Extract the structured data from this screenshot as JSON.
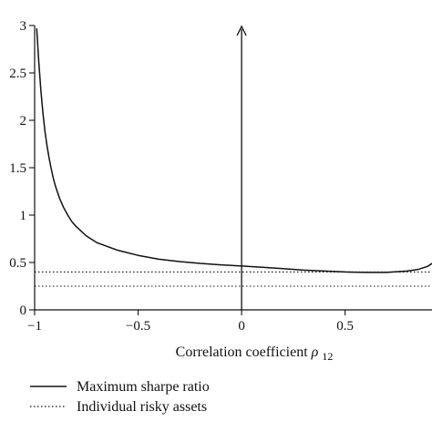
{
  "chart_data": {
    "type": "line",
    "title": "",
    "xlabel": "Correlation coefficient",
    "xlabel_symbol": "ρ",
    "xlabel_subscript": "12",
    "ylabel": "",
    "xlim": [
      -1,
      0.92
    ],
    "ylim": [
      0,
      3
    ],
    "xticks": [
      -1,
      -0.5,
      0,
      0.5
    ],
    "xtick_labels": [
      "−1",
      "−0.5",
      "0",
      "0.5"
    ],
    "yticks": [
      0,
      0.5,
      1,
      1.5,
      2,
      2.5,
      3
    ],
    "ytick_labels": [
      "0",
      "0.5",
      "1",
      "1.5",
      "2",
      "2.5",
      "3"
    ],
    "grid": false,
    "legend_position": "bottom-left",
    "vertical_arrow_x": 0,
    "series": [
      {
        "name": "Maximum sharpe ratio",
        "style": "solid",
        "x": [
          -0.99,
          -0.98,
          -0.97,
          -0.96,
          -0.95,
          -0.94,
          -0.93,
          -0.92,
          -0.91,
          -0.9,
          -0.88,
          -0.86,
          -0.84,
          -0.82,
          -0.8,
          -0.75,
          -0.7,
          -0.6,
          -0.5,
          -0.4,
          -0.3,
          -0.2,
          -0.1,
          0,
          0.1,
          0.2,
          0.3,
          0.4,
          0.5,
          0.6,
          0.7,
          0.8,
          0.85,
          0.9,
          0.92
        ],
        "y": [
          2.97,
          2.62,
          2.32,
          2.08,
          1.88,
          1.73,
          1.6,
          1.49,
          1.39,
          1.31,
          1.18,
          1.08,
          1.0,
          0.93,
          0.88,
          0.78,
          0.71,
          0.63,
          0.575,
          0.535,
          0.51,
          0.49,
          0.475,
          0.463,
          0.45,
          0.435,
          0.42,
          0.41,
          0.4,
          0.395,
          0.395,
          0.41,
          0.425,
          0.46,
          0.49
        ]
      },
      {
        "name": "Individual risky assets",
        "style": "dotted",
        "x": [
          -1,
          0.92
        ],
        "y_values": [
          0.4,
          0.25
        ]
      }
    ]
  }
}
